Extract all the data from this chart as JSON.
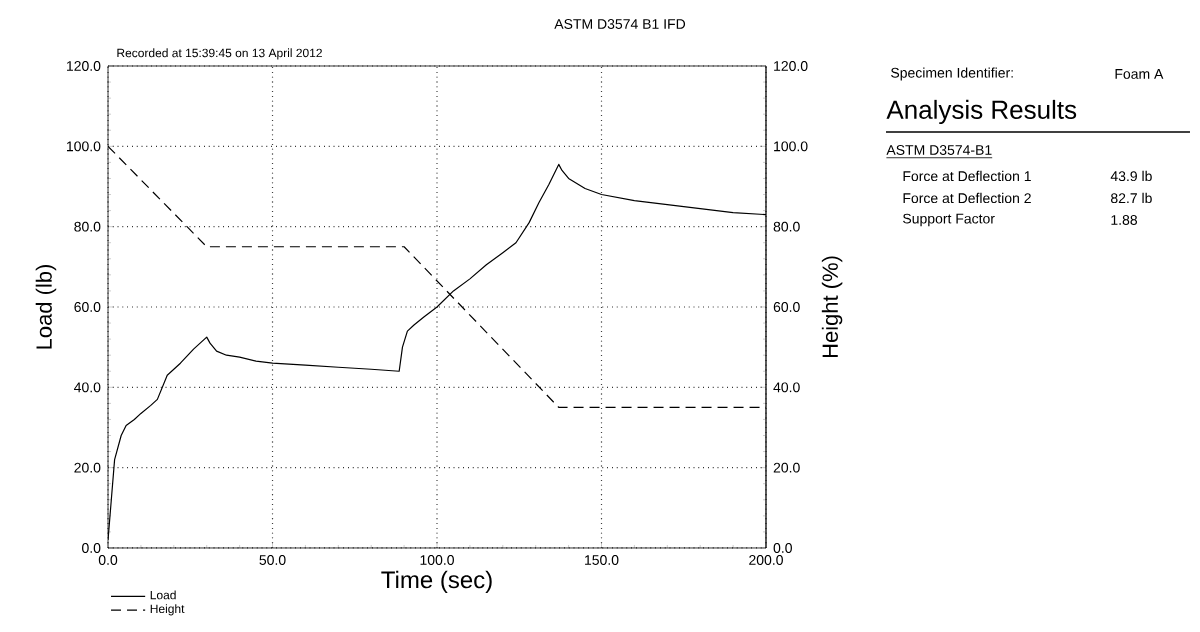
{
  "chart_data": {
    "type": "line",
    "title": "ASTM D3574 B1 IFD",
    "xlabel": "Time (sec)",
    "ylabel": "Load (lb)",
    "y2label": "Height (%)",
    "xlim": [
      0,
      200
    ],
    "ylim": [
      0,
      120
    ],
    "y2lim": [
      0,
      120
    ],
    "xticks": [
      {
        "value": 0,
        "label": "0.0"
      },
      {
        "value": 50,
        "label": "50.0"
      },
      {
        "value": 100,
        "label": "100.0"
      },
      {
        "value": 150,
        "label": "150.0"
      },
      {
        "value": 200,
        "label": "200.0"
      }
    ],
    "yticks": [
      {
        "value": 0,
        "label": "0.0"
      },
      {
        "value": 20,
        "label": "20.0"
      },
      {
        "value": 40,
        "label": "40.0"
      },
      {
        "value": 60,
        "label": "60.0"
      },
      {
        "value": 80,
        "label": "80.0"
      },
      {
        "value": 100,
        "label": "100.0"
      },
      {
        "value": 120,
        "label": "120.0"
      }
    ],
    "y2ticks": [
      {
        "value": 0,
        "label": "0.0"
      },
      {
        "value": 20,
        "label": "20.0"
      },
      {
        "value": 40,
        "label": "40.0"
      },
      {
        "value": 60,
        "label": "60.0"
      },
      {
        "value": 80,
        "label": "80.0"
      },
      {
        "value": 100,
        "label": "100.0"
      },
      {
        "value": 120,
        "label": "120.0"
      }
    ],
    "grid": true,
    "legend": "bottom left",
    "marker": "none",
    "series": [
      {
        "name": "Load",
        "color": "#000000",
        "line_style": "solid",
        "x": [
          0,
          1,
          2,
          4,
          5.5,
          8,
          10,
          13,
          15,
          18,
          22,
          26,
          30,
          31,
          33,
          36,
          40,
          45,
          50,
          60,
          70,
          80,
          88.5,
          89.5,
          91,
          93,
          96,
          100,
          105,
          110,
          115,
          120,
          124,
          128,
          131,
          134,
          137,
          138,
          140,
          145,
          150,
          160,
          170,
          180,
          190,
          200
        ],
        "values": [
          2,
          12,
          22,
          28,
          30.5,
          32,
          33.5,
          35.5,
          37,
          43,
          46,
          49.5,
          52.5,
          51,
          49,
          48,
          47.5,
          46.5,
          46,
          45.5,
          45,
          44.5,
          44,
          50,
          54,
          55.5,
          57.5,
          60,
          64,
          67,
          70.5,
          73.5,
          76,
          81,
          86,
          90.5,
          95.5,
          94,
          92,
          89.5,
          88,
          86.5,
          85.5,
          84.5,
          83.5,
          83
        ]
      },
      {
        "name": "Height",
        "color": "#000000",
        "line_style": "dashed",
        "axis": "y2",
        "x": [
          0,
          30,
          90,
          137,
          200
        ],
        "values": [
          100,
          75,
          75,
          35,
          35
        ]
      }
    ],
    "annotations": [
      "Recorded at 15:39:45 on 13 April 2012",
      "Specimen Identifier:",
      "Foam A",
      "Analysis Results",
      "ASTM D3574-B1",
      "Force at Deflection 1",
      "43.9 lb",
      "Force at Deflection 2",
      "82.7 lb",
      "Support Factor",
      "1.88"
    ]
  }
}
